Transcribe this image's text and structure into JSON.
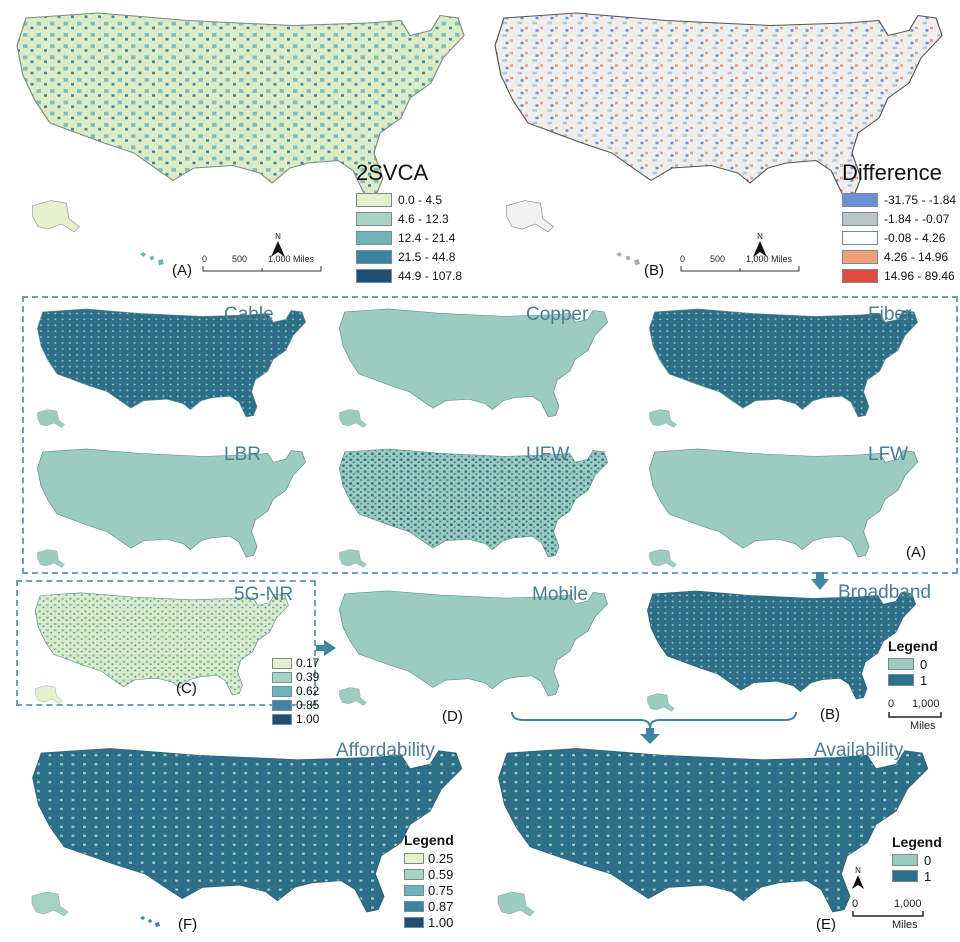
{
  "colors": {
    "seq": [
      "#e6f0cf",
      "#a7d3c4",
      "#6fb2bb",
      "#3f84a3",
      "#1e4e74"
    ],
    "diff": [
      "#6d8fd4",
      "#b9c4c9",
      "#ffffff",
      "#eea07a",
      "#e24b3b"
    ],
    "binary": [
      "#9ccbc0",
      "#2d6f88"
    ],
    "mapA_fill": "#dcecc6",
    "mapB_fill": "#eeeeee",
    "title": "#4a7e96",
    "dashed": "#6aa3b8"
  },
  "top_left": {
    "panel_letter": "(A)",
    "legend_title": "2SVCA",
    "legend": [
      "0.0 - 4.5",
      "4.6 - 12.3",
      "12.4 - 21.4",
      "21.5 - 44.8",
      "44.9 - 107.8"
    ],
    "scale": {
      "zero": "0",
      "mid": "500",
      "end": "1,000 Miles"
    },
    "north": "N"
  },
  "top_right": {
    "panel_letter": "(B)",
    "legend_title": "Difference",
    "legend": [
      "-31.75 - -1.84",
      "-1.84 - -0.07",
      "-0.08 - 4.26",
      "4.26 - 14.96",
      "14.96 - 89.46"
    ],
    "scale": {
      "zero": "0",
      "mid": "500",
      "end": "1,000 Miles"
    },
    "north": "N"
  },
  "tech_maps": [
    {
      "title": "Cable",
      "level": 0.55
    },
    {
      "title": "Copper",
      "level": 0.2
    },
    {
      "title": "Fiber",
      "level": 0.8
    },
    {
      "title": "LBR",
      "level": 0.25
    },
    {
      "title": "UFW",
      "level": 0.35
    },
    {
      "title": "LFW",
      "level": 0.22
    }
  ],
  "tech_group_letter": "(A)",
  "five_g": {
    "title": "5G-NR",
    "panel_letter": "(C)",
    "legend": [
      "0.17",
      "0.39",
      "0.62",
      "0.85",
      "1.00"
    ]
  },
  "mobile": {
    "title": "Mobile",
    "panel_letter": "(D)"
  },
  "broadband": {
    "title": "Broadband",
    "panel_letter": "(B)",
    "legend_title": "Legend",
    "legend": [
      "0",
      "1"
    ],
    "scale": {
      "zero": "0",
      "end": "1,000",
      "unit": "Miles"
    }
  },
  "affordability": {
    "title": "Affordability",
    "panel_letter": "(F)",
    "legend_title": "Legend",
    "legend": [
      "0.25",
      "0.59",
      "0.75",
      "0.87",
      "1.00"
    ]
  },
  "availability": {
    "title": "Availability",
    "panel_letter": "(E)",
    "legend_title": "Legend",
    "legend": [
      "0",
      "1"
    ],
    "scale": {
      "zero": "0",
      "end": "1,000",
      "unit": "Miles"
    },
    "north": "N"
  }
}
